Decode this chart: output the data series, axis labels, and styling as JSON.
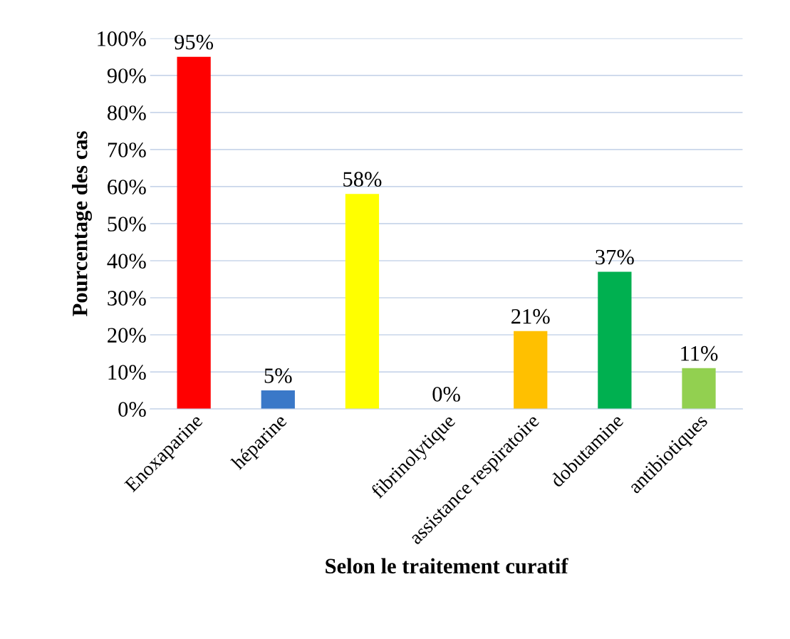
{
  "chart_data": {
    "type": "bar",
    "xlabel": "Selon le traitement curatif",
    "ylabel": "Pourcentage des cas",
    "categories": [
      "Enoxaparine",
      "héparine",
      null,
      "fibrinolytique",
      "assistance respiratoire",
      "dobutamine",
      "antibiotiques"
    ],
    "values": [
      95,
      5,
      58,
      0,
      21,
      37,
      11
    ],
    "colors": [
      "#ff0000",
      "#3a78c8",
      "#ffff00",
      "#1f3864",
      "#ffc000",
      "#00b050",
      "#92d050"
    ],
    "value_labels": [
      "95%",
      "5%",
      "58%",
      "0%",
      "21%",
      "37%",
      "11%"
    ],
    "ylim": [
      0,
      100
    ],
    "yticks": [
      {
        "value": 0,
        "label": "0%"
      },
      {
        "value": 10,
        "label": "10%"
      },
      {
        "value": 20,
        "label": "20%"
      },
      {
        "value": 30,
        "label": "30%"
      },
      {
        "value": 40,
        "label": "40%"
      },
      {
        "value": 50,
        "label": "50%"
      },
      {
        "value": 60,
        "label": "60%"
      },
      {
        "value": 70,
        "label": "70%"
      },
      {
        "value": 80,
        "label": "80%"
      },
      {
        "value": 90,
        "label": "90%"
      },
      {
        "value": 100,
        "label": "100%"
      }
    ],
    "grid": "y",
    "legend": false
  }
}
